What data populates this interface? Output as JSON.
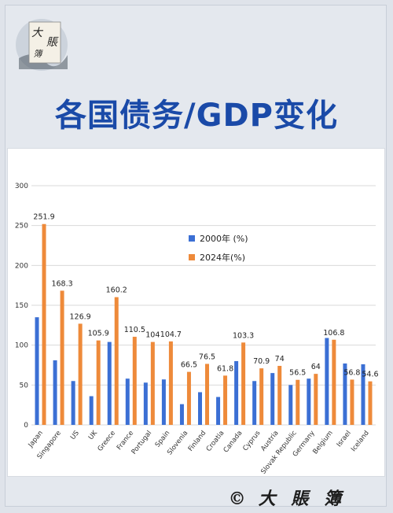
{
  "header": {
    "title": "各国债务/GDP变化",
    "logo_chars": [
      "大",
      "賬",
      "簿"
    ]
  },
  "footer": {
    "copyright_symbol": "©",
    "brand": "大 賬 簿"
  },
  "colors": {
    "series_2000": "#3b6fd4",
    "series_2024": "#ee8a3a",
    "title": "#1a4aa8"
  },
  "chart_data": {
    "type": "bar",
    "title": "",
    "xlabel": "",
    "ylabel": "",
    "ylim": [
      0,
      300
    ],
    "yticks": [
      0,
      50,
      100,
      150,
      200,
      250,
      300
    ],
    "grid": true,
    "legend_position": "center",
    "categories": [
      "Japan",
      "Singapore",
      "US",
      "UK",
      "Greece",
      "France",
      "Portugal",
      "Spain",
      "Slovenia",
      "Finland",
      "Croatia",
      "Canada",
      "Cyprus",
      "Austria",
      "Slovak Republic",
      "Germany",
      "Belgium",
      "Israel",
      "Iceland"
    ],
    "series": [
      {
        "name": "2000年 (%)",
        "values": [
          135,
          81,
          55,
          36,
          104,
          58,
          53,
          57,
          26,
          41,
          35,
          80,
          55,
          65,
          50,
          58,
          109,
          77,
          76
        ]
      },
      {
        "name": "2024年(%)",
        "values": [
          251.9,
          168.3,
          126.9,
          105.9,
          160.2,
          110.5,
          104,
          104.7,
          66.5,
          76.5,
          61.8,
          103.3,
          70.9,
          74,
          56.5,
          64,
          106.8,
          56.8,
          54.6
        ]
      }
    ],
    "data_labels": [
      "251.9",
      "168.3",
      "126.9",
      "105.9",
      "160.2",
      "110.5",
      "104",
      "104.7",
      "66.5",
      "76.5",
      "61.8",
      "103.3",
      "70.9",
      "74",
      "56.5",
      "64",
      "106.8",
      "56.8",
      "54.6"
    ]
  }
}
